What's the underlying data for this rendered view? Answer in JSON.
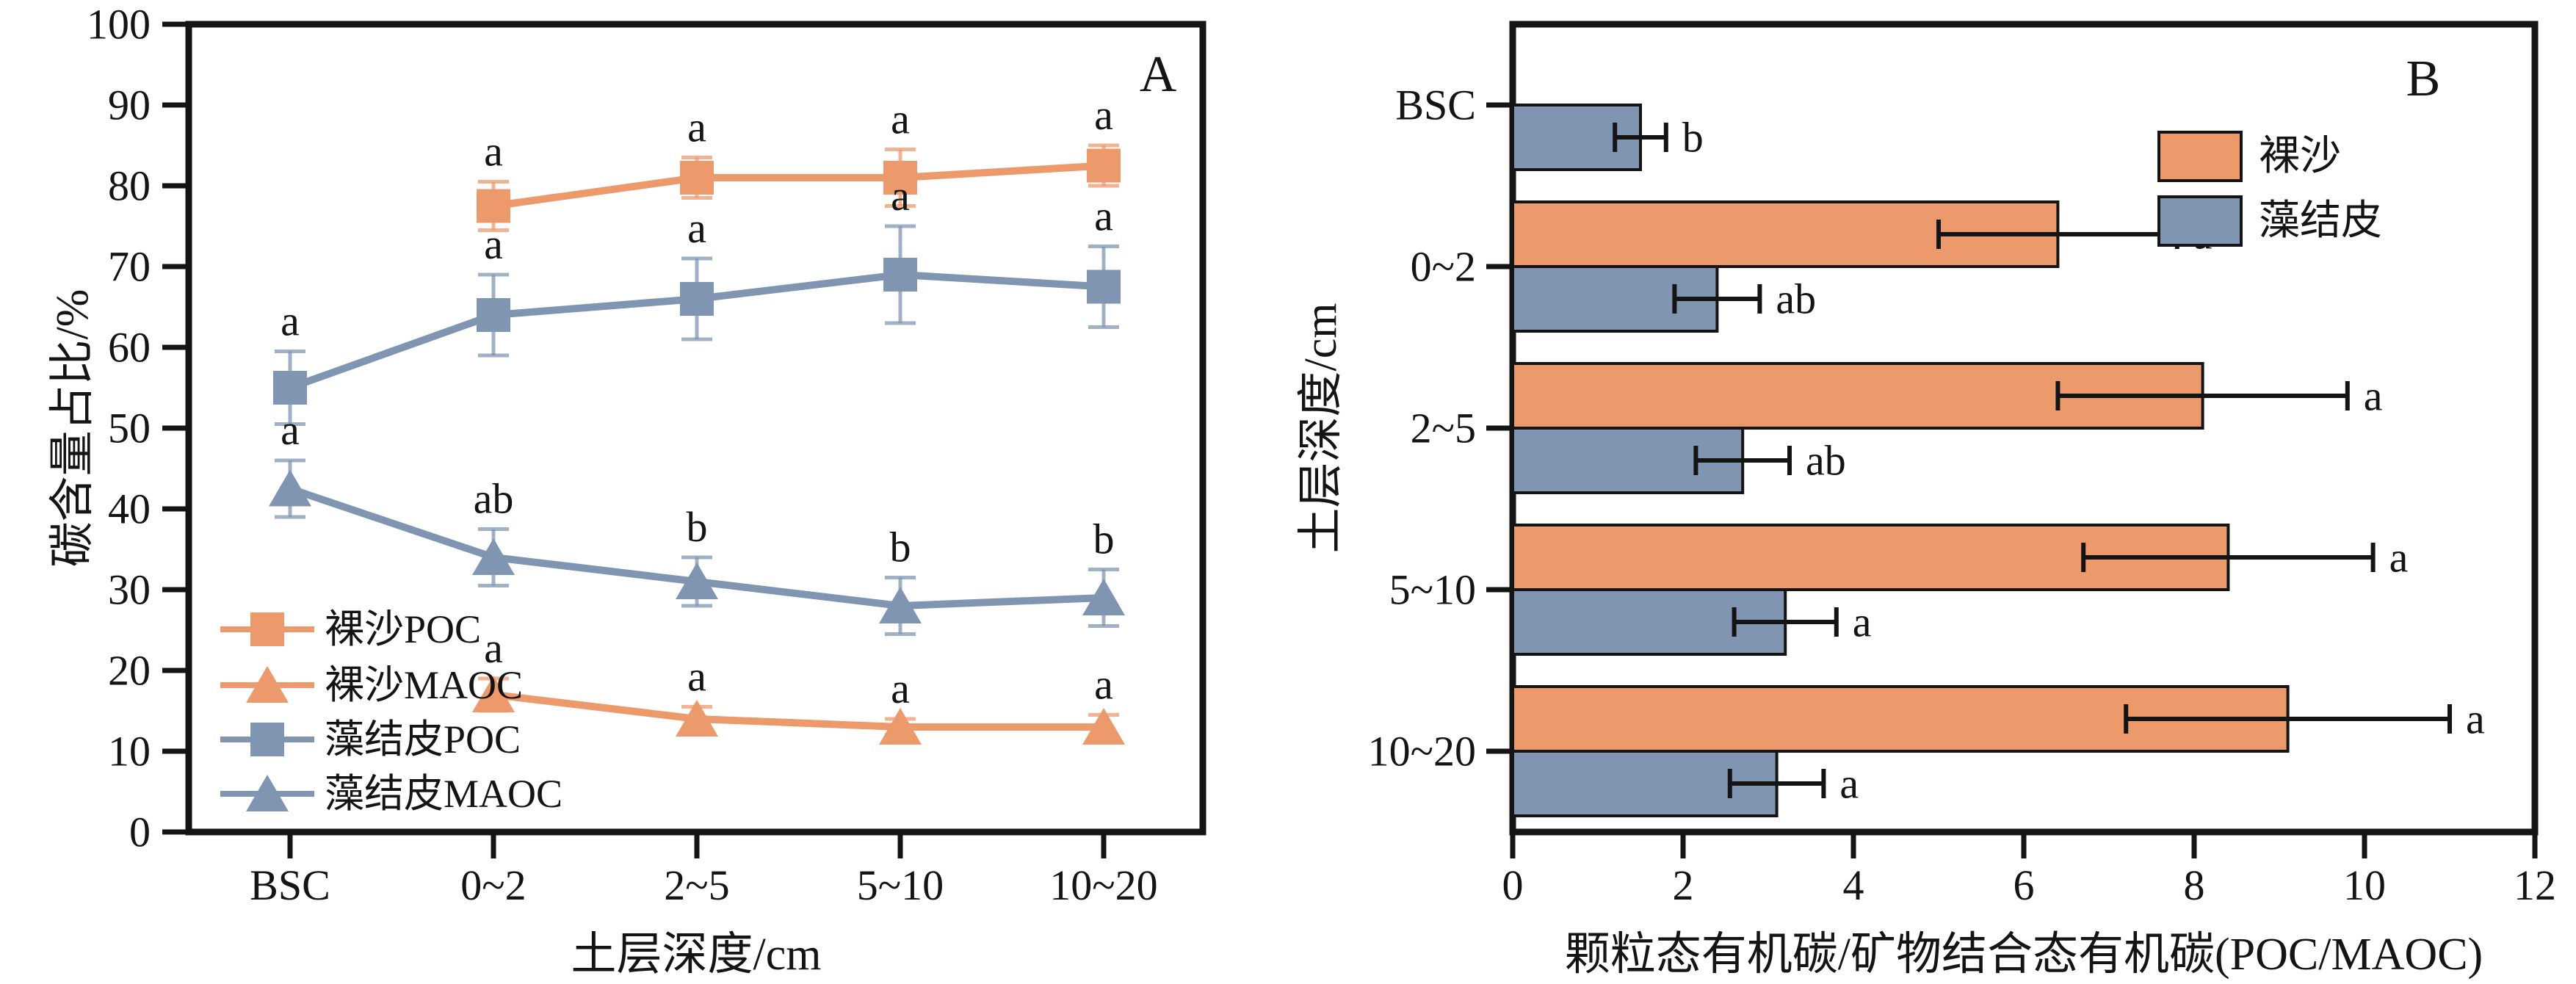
{
  "figure": {
    "background": "#ffffff",
    "axis_color": "#141414",
    "panel_a_letter": "A",
    "panel_b_letter": "B"
  },
  "colors": {
    "bare_sand_orange": "#EC9A6C",
    "crust_blue": "#8095B2",
    "error_bar_b": "#141414"
  },
  "chart_data": [
    {
      "type": "line",
      "panel_label": "A",
      "categories": [
        "BSC",
        "0~2",
        "2~5",
        "5~10",
        "10~20"
      ],
      "xlabel": "土层深度/cm",
      "ylabel": "碳含量占比/%",
      "ylim": [
        0,
        100
      ],
      "ytick_step": 10,
      "grid": false,
      "legend_position": "lower-left",
      "series": [
        {
          "name": "裸沙POC",
          "marker": "square",
          "color": "#EC9A6C",
          "values": [
            null,
            77.5,
            81,
            81,
            82.5
          ],
          "errors": [
            null,
            3,
            2.5,
            3.5,
            2.5
          ],
          "sig_letters": [
            null,
            "a",
            "a",
            "a",
            "a"
          ]
        },
        {
          "name": "裸沙MAOC",
          "marker": "triangle",
          "color": "#EC9A6C",
          "values": [
            null,
            17,
            14,
            13,
            13
          ],
          "errors": [
            null,
            2,
            1.5,
            1,
            1.5
          ],
          "sig_letters": [
            null,
            "a",
            "a",
            "a",
            "a"
          ]
        },
        {
          "name": "藻结皮POC",
          "marker": "square",
          "color": "#8095B2",
          "values": [
            55,
            64,
            66,
            69,
            67.5
          ],
          "errors": [
            4.5,
            5,
            5,
            6,
            5
          ],
          "sig_letters": [
            "a",
            "a",
            "a",
            "a",
            "a"
          ]
        },
        {
          "name": "藻结皮MAOC",
          "marker": "triangle",
          "color": "#8095B2",
          "values": [
            42.5,
            34,
            31,
            28,
            29
          ],
          "errors": [
            3.5,
            3.5,
            3,
            3.5,
            3.5
          ],
          "sig_letters": [
            "a",
            "ab",
            "b",
            "b",
            "b"
          ]
        }
      ]
    },
    {
      "type": "bar",
      "orientation": "horizontal",
      "panel_label": "B",
      "categories": [
        "BSC",
        "0~2",
        "2~5",
        "5~10",
        "10~20"
      ],
      "xlabel": "颗粒态有机碳/矿物结合态有机碳(POC/MAOC)",
      "ylabel": "土层深度/cm",
      "xlim": [
        0,
        12
      ],
      "xtick_step": 2,
      "grid": false,
      "legend_position": "upper-right",
      "series": [
        {
          "name": "裸沙",
          "color": "#EC9A6C",
          "values": [
            null,
            6.4,
            8.1,
            8.4,
            9.1
          ],
          "errors": [
            null,
            1.4,
            1.7,
            1.7,
            1.9
          ],
          "sig_letters": [
            null,
            "a",
            "a",
            "a",
            "a"
          ]
        },
        {
          "name": "藻结皮",
          "color": "#8095B2",
          "values": [
            1.5,
            2.4,
            2.7,
            3.2,
            3.1
          ],
          "errors": [
            0.3,
            0.5,
            0.55,
            0.6,
            0.55
          ],
          "sig_letters": [
            "b",
            "ab",
            "ab",
            "a",
            "a"
          ]
        }
      ]
    }
  ]
}
